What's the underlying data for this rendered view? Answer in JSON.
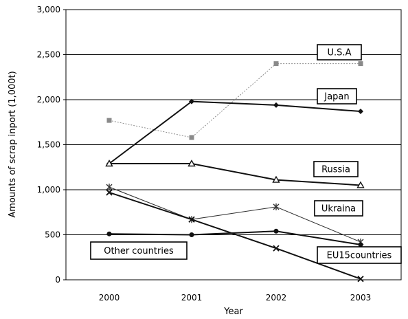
{
  "chart_data": {
    "type": "line",
    "xlabel": "Year",
    "ylabel": "Amounts of scrap inport (1,000t)",
    "categories": [
      "2000",
      "2001",
      "2002",
      "2003"
    ],
    "ylim": [
      0,
      3000
    ],
    "yticks": [
      0,
      500,
      1000,
      1500,
      2000,
      2500,
      3000
    ],
    "ytick_labels": [
      "0",
      "500",
      "1,000",
      "1,500",
      "2,000",
      "2,500",
      "3,000"
    ],
    "grid": "horizontal",
    "series": [
      {
        "name": "U.S.A",
        "values": [
          1770,
          1580,
          2400,
          2400
        ],
        "color": "#8a8a8a",
        "marker": "square",
        "dashed": true
      },
      {
        "name": "Japan",
        "values": [
          1290,
          1980,
          1940,
          1870
        ],
        "color": "#111111",
        "marker": "diamond"
      },
      {
        "name": "Russia",
        "values": [
          1290,
          1290,
          1110,
          1050
        ],
        "color": "#111111",
        "marker": "triangle"
      },
      {
        "name": "Ukraina",
        "values": [
          1030,
          670,
          810,
          420
        ],
        "color": "#333333",
        "marker": "asterisk"
      },
      {
        "name": "EU15countries",
        "values": [
          970,
          670,
          350,
          10
        ],
        "color": "#111111",
        "marker": "x"
      },
      {
        "name": "Other countries",
        "values": [
          510,
          500,
          540,
          390
        ],
        "color": "#111111",
        "marker": "circle"
      }
    ]
  }
}
